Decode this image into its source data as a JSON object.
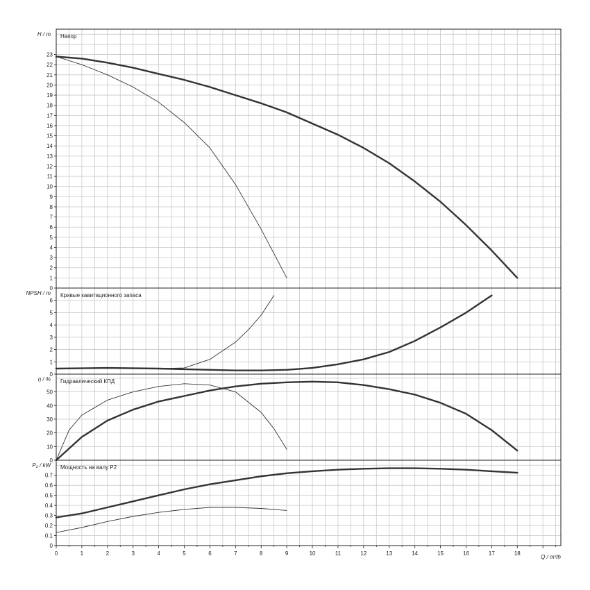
{
  "chart_data": {
    "type": "line",
    "xlabel": "Q / m³/h",
    "x_ticks": [
      0,
      1,
      2,
      3,
      4,
      5,
      6,
      7,
      8,
      9,
      10,
      11,
      12,
      13,
      14,
      15,
      16,
      17,
      18
    ],
    "xlim": [
      0,
      19.7
    ],
    "panels": [
      {
        "id": "head",
        "title": "Напор",
        "ylabel": "H / m",
        "ylim": [
          0,
          25.5
        ],
        "y_ticks": [
          0,
          1,
          2,
          3,
          4,
          5,
          6,
          7,
          8,
          9,
          10,
          11,
          12,
          13,
          14,
          15,
          16,
          17,
          18,
          19,
          20,
          21,
          22,
          23
        ],
        "series": [
          {
            "weight": "thick",
            "x": [
              0,
              1,
              2,
              3,
              4,
              5,
              6,
              7,
              8,
              9,
              10,
              11,
              12,
              13,
              14,
              15,
              16,
              17,
              18
            ],
            "y": [
              22.8,
              22.6,
              22.2,
              21.7,
              21.1,
              20.5,
              19.8,
              19.0,
              18.2,
              17.3,
              16.2,
              15.1,
              13.8,
              12.3,
              10.5,
              8.5,
              6.2,
              3.7,
              1.0
            ]
          },
          {
            "weight": "thin",
            "x": [
              0,
              1,
              2,
              3,
              4,
              5,
              6,
              7,
              8,
              8.5,
              9
            ],
            "y": [
              22.8,
              22.0,
              21.0,
              19.8,
              18.3,
              16.3,
              13.8,
              10.2,
              5.8,
              3.4,
              1.0
            ]
          }
        ]
      },
      {
        "id": "npsh",
        "title": "Кривые кавитационного запаса",
        "ylabel": "NPSH / m",
        "ylim": [
          0,
          7
        ],
        "y_ticks": [
          0,
          1,
          2,
          3,
          4,
          5,
          6
        ],
        "series": [
          {
            "weight": "thick",
            "x": [
              0,
              2,
              4,
              5,
              6,
              7,
              8,
              9,
              10,
              11,
              12,
              13,
              14,
              15,
              16,
              17
            ],
            "y": [
              0.45,
              0.5,
              0.45,
              0.4,
              0.35,
              0.3,
              0.3,
              0.35,
              0.5,
              0.8,
              1.2,
              1.8,
              2.7,
              3.8,
              5.0,
              6.4
            ]
          },
          {
            "weight": "thin",
            "x": [
              0,
              2,
              4,
              5,
              6,
              7,
              7.5,
              8,
              8.5
            ],
            "y": [
              0.45,
              0.5,
              0.45,
              0.5,
              1.2,
              2.6,
              3.6,
              4.8,
              6.4
            ]
          }
        ]
      },
      {
        "id": "eff",
        "title": "Гидравлический КПД",
        "ylabel": "η / %",
        "ylim": [
          0,
          63
        ],
        "y_ticks": [
          0,
          10,
          20,
          30,
          40,
          50
        ],
        "series": [
          {
            "weight": "thick",
            "x": [
              0,
              1,
              2,
              3,
              4,
              5,
              6,
              7,
              8,
              9,
              10,
              11,
              12,
              13,
              14,
              15,
              16,
              17,
              18
            ],
            "y": [
              0,
              17,
              29,
              37,
              43,
              47,
              51,
              54,
              56,
              57,
              57.5,
              57,
              55,
              52,
              48,
              42,
              34,
              22,
              7
            ]
          },
          {
            "weight": "thin",
            "x": [
              0,
              0.5,
              1,
              2,
              3,
              4,
              5,
              6,
              7,
              8,
              8.5,
              9
            ],
            "y": [
              0,
              22,
              33,
              44,
              50,
              54,
              56,
              55,
              50,
              35,
              23,
              8
            ]
          }
        ]
      },
      {
        "id": "power",
        "title": "Мощность на валу P2",
        "ylabel": "P₂ / kW",
        "ylim": [
          0,
          0.85
        ],
        "y_ticks": [
          0,
          0.1,
          0.2,
          0.3,
          0.4,
          0.5,
          0.6,
          0.7
        ],
        "series": [
          {
            "weight": "thick",
            "x": [
              0,
              1,
              2,
              3,
              4,
              5,
              6,
              7,
              8,
              9,
              10,
              11,
              12,
              13,
              14,
              15,
              16,
              17,
              18
            ],
            "y": [
              0.28,
              0.32,
              0.38,
              0.44,
              0.5,
              0.56,
              0.61,
              0.65,
              0.69,
              0.72,
              0.74,
              0.755,
              0.765,
              0.77,
              0.77,
              0.765,
              0.755,
              0.74,
              0.725
            ]
          },
          {
            "weight": "thin",
            "x": [
              0,
              1,
              2,
              3,
              4,
              5,
              6,
              7,
              8,
              9
            ],
            "y": [
              0.13,
              0.18,
              0.24,
              0.29,
              0.33,
              0.36,
              0.38,
              0.38,
              0.37,
              0.35
            ]
          }
        ]
      }
    ],
    "grid": true
  }
}
